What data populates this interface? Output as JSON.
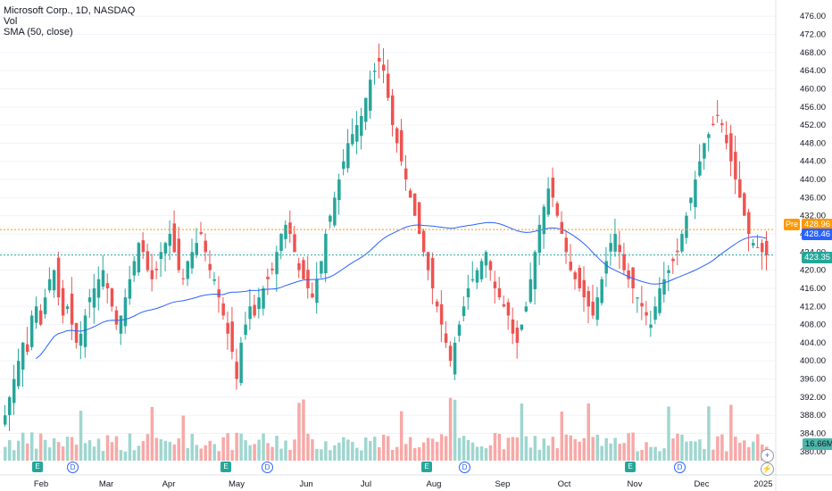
{
  "legend": {
    "title": "Microsoft Corp., 1D, NASDAQ",
    "vol": "Vol",
    "sma": "SMA (50, close)"
  },
  "colors": {
    "up": "#26a69a",
    "down": "#ef5350",
    "vol_up": "#9fd6cf",
    "vol_down": "#f7a9a7",
    "sma": "#2962ff",
    "pre": "#ff9800",
    "last": "#26a69a"
  },
  "price_tags": {
    "pre_label": "Pre",
    "pre_price": "428.96",
    "sma_value": "428.46",
    "last_price": "423.35",
    "volume": "16.66M"
  },
  "y_axis": [
    "476.00",
    "472.00",
    "468.00",
    "464.00",
    "460.00",
    "456.00",
    "452.00",
    "448.00",
    "444.00",
    "440.00",
    "436.00",
    "432.00",
    "428.00",
    "424.00",
    "420.00",
    "416.00",
    "412.00",
    "408.00",
    "404.00",
    "400.00",
    "396.00",
    "392.00",
    "388.00",
    "384.00",
    "380.00"
  ],
  "x_axis": [
    "Feb",
    "Mar",
    "Apr",
    "May",
    "Jun",
    "Jul",
    "Aug",
    "Sep",
    "Oct",
    "Nov",
    "Dec",
    "2025"
  ],
  "events": [
    {
      "type": "E",
      "label": "E"
    },
    {
      "type": "D",
      "label": "D"
    },
    {
      "type": "E",
      "label": "E"
    },
    {
      "type": "D",
      "label": "D"
    },
    {
      "type": "E",
      "label": "E"
    },
    {
      "type": "D",
      "label": "D"
    },
    {
      "type": "E",
      "label": "E"
    },
    {
      "type": "D",
      "label": "D"
    }
  ],
  "chart_data": {
    "type": "candlestick",
    "title": "Microsoft Corp., 1D, NASDAQ",
    "ylim": [
      378,
      478
    ],
    "pre_price": 428.96,
    "sma_last": 428.46,
    "last_price": 423.35,
    "last_volume": "16.66M",
    "x_months": [
      "Feb",
      "Mar",
      "Apr",
      "May",
      "Jun",
      "Jul",
      "Aug",
      "Sep",
      "Oct",
      "Nov",
      "Dec",
      "2025"
    ],
    "closes": [
      388,
      392,
      396,
      400,
      404,
      402,
      410,
      412,
      408,
      414,
      418,
      420,
      414,
      410,
      412,
      408,
      404,
      406,
      410,
      414,
      416,
      418,
      420,
      416,
      412,
      408,
      410,
      414,
      418,
      422,
      426,
      424,
      420,
      418,
      420,
      424,
      426,
      428,
      424,
      420,
      418,
      422,
      424,
      426,
      428,
      424,
      420,
      418,
      414,
      410,
      406,
      402,
      396,
      404,
      408,
      412,
      410,
      414,
      416,
      418,
      420,
      424,
      428,
      430,
      428,
      424,
      420,
      418,
      416,
      414,
      418,
      422,
      428,
      432,
      436,
      440,
      444,
      448,
      450,
      452,
      454,
      458,
      462,
      464,
      466,
      464,
      458,
      452,
      448,
      444,
      440,
      436,
      432,
      428,
      424,
      420,
      416,
      412,
      408,
      404,
      400,
      404,
      408,
      412,
      416,
      418,
      420,
      422,
      424,
      420,
      416,
      414,
      412,
      410,
      406,
      404,
      408,
      412,
      418,
      424,
      430,
      434,
      438,
      436,
      432,
      428,
      424,
      420,
      418,
      416,
      414,
      412,
      410,
      414,
      418,
      422,
      426,
      428,
      424,
      420,
      418,
      416,
      414,
      412,
      410,
      408,
      412,
      416,
      418,
      420,
      422,
      424,
      428,
      432,
      436,
      440,
      444,
      448,
      450,
      452,
      454,
      452,
      448,
      444,
      440,
      436,
      432,
      428,
      426,
      425,
      424,
      423.35
    ],
    "volume_scale": "relative"
  }
}
